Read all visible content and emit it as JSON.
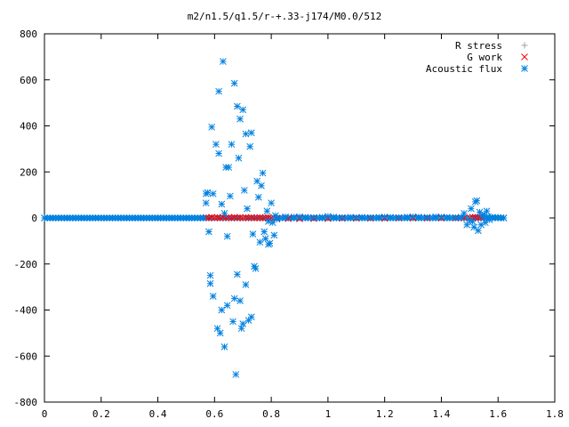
{
  "chart_data": {
    "type": "scatter",
    "title": "m2/n1.5/q1.5/r-+.33-j174/M0.0/512",
    "xlabel": "",
    "ylabel": "",
    "xlim": [
      0,
      1.8
    ],
    "ylim": [
      -800,
      800
    ],
    "xticks": [
      "0",
      "0.2",
      "0.4",
      "0.6",
      "0.8",
      "1",
      "1.2",
      "1.4",
      "1.6",
      "1.8"
    ],
    "yticks": [
      "800",
      "600",
      "400",
      "200",
      "0",
      "-200",
      "-400",
      "-600",
      "-800"
    ],
    "grid": false,
    "legend_position": "top-right",
    "series": [
      {
        "name": "R stress",
        "color": "#a0a0a0",
        "marker": "plus",
        "points": [
          [
            0.0,
            0
          ],
          [
            0.1,
            0
          ],
          [
            0.2,
            0
          ],
          [
            0.3,
            0
          ],
          [
            0.4,
            0
          ],
          [
            0.5,
            0
          ],
          [
            0.6,
            0
          ],
          [
            0.7,
            0
          ],
          [
            0.8,
            0
          ],
          [
            0.9,
            0
          ],
          [
            1.0,
            0
          ],
          [
            1.1,
            0
          ],
          [
            1.2,
            0
          ],
          [
            1.3,
            0
          ],
          [
            1.4,
            0
          ],
          [
            1.5,
            0
          ],
          [
            1.6,
            0
          ]
        ]
      },
      {
        "name": "G work",
        "color": "#ff0000",
        "marker": "cross",
        "points": [
          [
            0.57,
            2
          ],
          [
            0.58,
            0
          ],
          [
            0.59,
            3
          ],
          [
            0.6,
            1
          ],
          [
            0.61,
            2
          ],
          [
            0.62,
            0
          ],
          [
            0.63,
            3
          ],
          [
            0.64,
            1
          ],
          [
            0.65,
            2
          ],
          [
            0.66,
            0
          ],
          [
            0.67,
            3
          ],
          [
            0.68,
            1
          ],
          [
            0.69,
            2
          ],
          [
            0.7,
            0
          ],
          [
            0.71,
            2
          ],
          [
            0.72,
            1
          ],
          [
            0.73,
            2
          ],
          [
            0.74,
            0
          ],
          [
            0.75,
            1
          ],
          [
            0.76,
            2
          ],
          [
            0.77,
            0
          ],
          [
            0.78,
            1
          ],
          [
            0.79,
            2
          ],
          [
            0.8,
            0
          ],
          [
            0.82,
            -3
          ],
          [
            0.86,
            -3
          ],
          [
            0.9,
            -4
          ],
          [
            0.95,
            -3
          ],
          [
            1.0,
            -3
          ],
          [
            1.05,
            -2
          ],
          [
            1.1,
            -2
          ],
          [
            1.15,
            -2
          ],
          [
            1.2,
            -2
          ],
          [
            1.25,
            -1
          ],
          [
            1.3,
            -1
          ],
          [
            1.35,
            -1
          ],
          [
            1.4,
            -1
          ],
          [
            1.45,
            -1
          ],
          [
            1.48,
            0
          ],
          [
            1.5,
            1
          ],
          [
            1.51,
            3
          ],
          [
            1.52,
            3
          ],
          [
            1.53,
            2
          ],
          [
            1.54,
            1
          ]
        ]
      },
      {
        "name": "Acoustic flux",
        "color": "#0080e0",
        "marker": "star",
        "points": [
          [
            0.0,
            0
          ],
          [
            0.01,
            0
          ],
          [
            0.02,
            0
          ],
          [
            0.03,
            0
          ],
          [
            0.04,
            0
          ],
          [
            0.05,
            0
          ],
          [
            0.06,
            0
          ],
          [
            0.07,
            0
          ],
          [
            0.08,
            0
          ],
          [
            0.09,
            0
          ],
          [
            0.1,
            0
          ],
          [
            0.11,
            0
          ],
          [
            0.12,
            0
          ],
          [
            0.13,
            0
          ],
          [
            0.14,
            0
          ],
          [
            0.15,
            0
          ],
          [
            0.16,
            0
          ],
          [
            0.17,
            0
          ],
          [
            0.18,
            0
          ],
          [
            0.19,
            0
          ],
          [
            0.2,
            0
          ],
          [
            0.21,
            0
          ],
          [
            0.22,
            0
          ],
          [
            0.23,
            0
          ],
          [
            0.24,
            0
          ],
          [
            0.25,
            0
          ],
          [
            0.26,
            0
          ],
          [
            0.27,
            0
          ],
          [
            0.28,
            0
          ],
          [
            0.29,
            0
          ],
          [
            0.3,
            0
          ],
          [
            0.31,
            0
          ],
          [
            0.32,
            0
          ],
          [
            0.33,
            0
          ],
          [
            0.34,
            0
          ],
          [
            0.35,
            0
          ],
          [
            0.36,
            0
          ],
          [
            0.37,
            0
          ],
          [
            0.38,
            0
          ],
          [
            0.39,
            0
          ],
          [
            0.4,
            0
          ],
          [
            0.41,
            0
          ],
          [
            0.42,
            0
          ],
          [
            0.43,
            0
          ],
          [
            0.44,
            0
          ],
          [
            0.45,
            0
          ],
          [
            0.46,
            0
          ],
          [
            0.47,
            0
          ],
          [
            0.48,
            0
          ],
          [
            0.49,
            0
          ],
          [
            0.5,
            0
          ],
          [
            0.51,
            0
          ],
          [
            0.52,
            0
          ],
          [
            0.53,
            0
          ],
          [
            0.54,
            0
          ],
          [
            0.55,
            0
          ],
          [
            0.56,
            0
          ],
          [
            0.57,
            65
          ],
          [
            0.57,
            105
          ],
          [
            0.575,
            110
          ],
          [
            0.58,
            -60
          ],
          [
            0.585,
            -250
          ],
          [
            0.585,
            -285
          ],
          [
            0.59,
            395
          ],
          [
            0.595,
            105
          ],
          [
            0.595,
            -340
          ],
          [
            0.605,
            320
          ],
          [
            0.61,
            -480
          ],
          [
            0.615,
            550
          ],
          [
            0.615,
            280
          ],
          [
            0.62,
            -500
          ],
          [
            0.625,
            -400
          ],
          [
            0.625,
            60
          ],
          [
            0.63,
            680
          ],
          [
            0.635,
            -560
          ],
          [
            0.635,
            20
          ],
          [
            0.64,
            220
          ],
          [
            0.645,
            -80
          ],
          [
            0.645,
            -380
          ],
          [
            0.65,
            220
          ],
          [
            0.655,
            95
          ],
          [
            0.66,
            320
          ],
          [
            0.665,
            -450
          ],
          [
            0.67,
            -350
          ],
          [
            0.67,
            585
          ],
          [
            0.675,
            -680
          ],
          [
            0.68,
            485
          ],
          [
            0.68,
            -245
          ],
          [
            0.685,
            260
          ],
          [
            0.69,
            -360
          ],
          [
            0.69,
            430
          ],
          [
            0.695,
            -480
          ],
          [
            0.7,
            470
          ],
          [
            0.7,
            -460
          ],
          [
            0.705,
            120
          ],
          [
            0.71,
            -290
          ],
          [
            0.71,
            365
          ],
          [
            0.715,
            40
          ],
          [
            0.72,
            -445
          ],
          [
            0.725,
            310
          ],
          [
            0.73,
            370
          ],
          [
            0.73,
            -430
          ],
          [
            0.735,
            -70
          ],
          [
            0.74,
            -210
          ],
          [
            0.745,
            -220
          ],
          [
            0.75,
            160
          ],
          [
            0.755,
            90
          ],
          [
            0.76,
            -105
          ],
          [
            0.765,
            140
          ],
          [
            0.77,
            195
          ],
          [
            0.775,
            -60
          ],
          [
            0.78,
            -90
          ],
          [
            0.785,
            30
          ],
          [
            0.79,
            -15
          ],
          [
            0.79,
            -115
          ],
          [
            0.795,
            -110
          ],
          [
            0.8,
            65
          ],
          [
            0.805,
            -20
          ],
          [
            0.81,
            -75
          ],
          [
            0.815,
            10
          ],
          [
            0.82,
            -5
          ],
          [
            0.85,
            5
          ],
          [
            0.88,
            4
          ],
          [
            0.9,
            5
          ],
          [
            0.92,
            3
          ],
          [
            0.95,
            2
          ],
          [
            0.98,
            3
          ],
          [
            1.0,
            7
          ],
          [
            1.02,
            4
          ],
          [
            1.05,
            2
          ],
          [
            1.08,
            3
          ],
          [
            1.1,
            2
          ],
          [
            1.12,
            3
          ],
          [
            1.15,
            2
          ],
          [
            1.18,
            3
          ],
          [
            1.2,
            4
          ],
          [
            1.22,
            3
          ],
          [
            1.25,
            2
          ],
          [
            1.28,
            4
          ],
          [
            1.3,
            5
          ],
          [
            1.32,
            4
          ],
          [
            1.35,
            3
          ],
          [
            1.38,
            5
          ],
          [
            1.4,
            4
          ],
          [
            1.42,
            3
          ],
          [
            1.45,
            2
          ],
          [
            1.47,
            3
          ],
          [
            1.48,
            20
          ],
          [
            1.49,
            -30
          ],
          [
            1.5,
            -10
          ],
          [
            1.505,
            40
          ],
          [
            1.51,
            -15
          ],
          [
            1.515,
            -40
          ],
          [
            1.52,
            70
          ],
          [
            1.525,
            75
          ],
          [
            1.53,
            -55
          ],
          [
            1.535,
            25
          ],
          [
            1.54,
            -30
          ],
          [
            1.545,
            10
          ],
          [
            1.55,
            15
          ],
          [
            1.555,
            -20
          ],
          [
            1.56,
            30
          ],
          [
            1.565,
            5
          ],
          [
            1.57,
            -8
          ],
          [
            1.58,
            3
          ],
          [
            1.59,
            2
          ],
          [
            1.6,
            2
          ],
          [
            1.61,
            1
          ],
          [
            1.62,
            0
          ]
        ]
      }
    ]
  }
}
